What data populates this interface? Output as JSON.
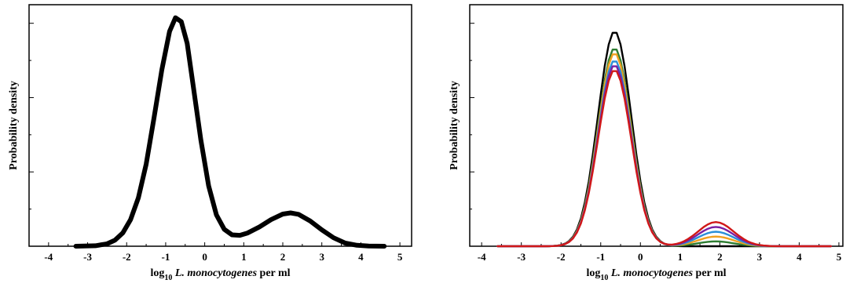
{
  "chart_data": [
    {
      "type": "line",
      "title": "",
      "xlabel_parts": {
        "prefix": "log",
        "sub": "10",
        "italic": "L. monocytogenes",
        "suffix": " per ml"
      },
      "ylabel": "Probability density",
      "xlim": [
        -4.5,
        5.3
      ],
      "ylim": [
        0,
        1
      ],
      "xticks": [
        -4,
        -3,
        -2,
        -1,
        0,
        1,
        2,
        3,
        4,
        5
      ],
      "grid": false,
      "legend": "none",
      "series": [
        {
          "color": "#000000",
          "x": [
            -3.3,
            -2.8,
            -2.5,
            -2.3,
            -2.1,
            -1.9,
            -1.7,
            -1.5,
            -1.3,
            -1.1,
            -0.9,
            -0.75,
            -0.6,
            -0.45,
            -0.3,
            -0.1,
            0.1,
            0.3,
            0.5,
            0.7,
            0.9,
            1.1,
            1.4,
            1.7,
            2.0,
            2.2,
            2.4,
            2.7,
            3.0,
            3.3,
            3.6,
            3.9,
            4.2,
            4.6
          ],
          "y": [
            0.0,
            0.002,
            0.01,
            0.025,
            0.055,
            0.11,
            0.2,
            0.34,
            0.53,
            0.73,
            0.89,
            0.946,
            0.93,
            0.84,
            0.67,
            0.44,
            0.25,
            0.13,
            0.07,
            0.047,
            0.045,
            0.055,
            0.08,
            0.11,
            0.133,
            0.138,
            0.132,
            0.105,
            0.068,
            0.035,
            0.013,
            0.004,
            0.001,
            0.0
          ]
        }
      ]
    },
    {
      "type": "line",
      "title": "",
      "xlabel_parts": {
        "prefix": "log",
        "sub": "10",
        "italic": "L. monocytogenes",
        "suffix": " per ml"
      },
      "ylabel": "Probability density",
      "xlim": [
        -4.3,
        5.1
      ],
      "ylim": [
        0,
        1
      ],
      "xticks": [
        -4,
        -3,
        -2,
        -1,
        0,
        1,
        2,
        3,
        4,
        5
      ],
      "grid": false,
      "legend": "none",
      "peak_heights": [
        0.89,
        0.82,
        0.8,
        0.77,
        0.75,
        0.73
      ],
      "bump_heights": [
        0.0,
        0.02,
        0.04,
        0.06,
        0.08,
        0.1
      ],
      "series": [
        {
          "color": "#000000"
        },
        {
          "color": "#2e7d32"
        },
        {
          "color": "#f0a020"
        },
        {
          "color": "#2b8fd8"
        },
        {
          "color": "#7a1fa2"
        },
        {
          "color": "#d01818"
        }
      ]
    }
  ]
}
